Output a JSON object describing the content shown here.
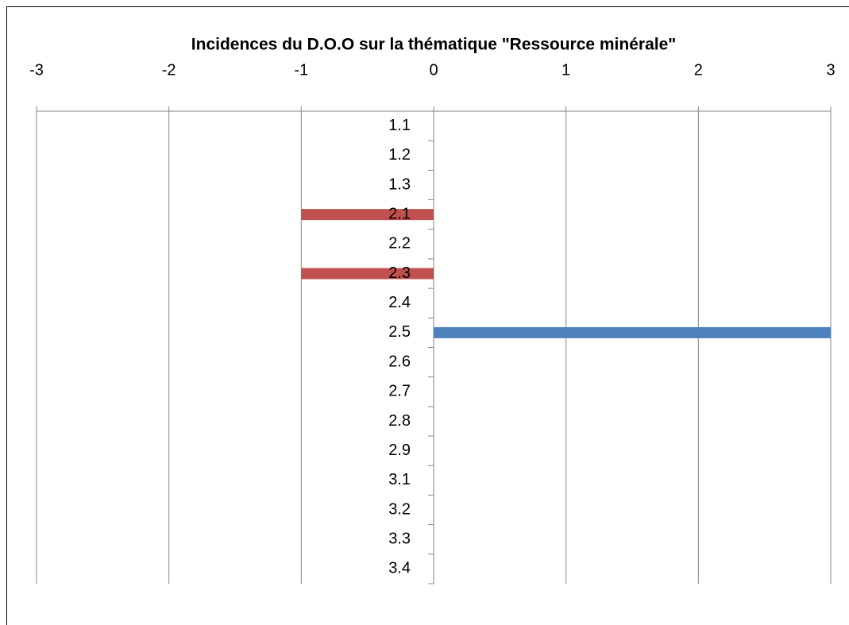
{
  "chart_data": {
    "type": "hbar",
    "title": "Incidences du D.O.O sur la thématique \"Ressource minérale\"",
    "categories": [
      "1.1",
      "1.2",
      "1.3",
      "2.1",
      "2.2",
      "2.3",
      "2.4",
      "2.5",
      "2.6",
      "2.7",
      "2.8",
      "2.9",
      "3.1",
      "3.2",
      "3.3",
      "3.4"
    ],
    "values": [
      0,
      0,
      0,
      -1,
      0,
      -1,
      0,
      3,
      0,
      0,
      0,
      0,
      0,
      0,
      0,
      0
    ],
    "colors": [
      "#4f81bd",
      "#4f81bd",
      "#4f81bd",
      "#c0504d",
      "#4f81bd",
      "#c0504d",
      "#4f81bd",
      "#4f81bd",
      "#4f81bd",
      "#4f81bd",
      "#4f81bd",
      "#4f81bd",
      "#4f81bd",
      "#4f81bd",
      "#4f81bd",
      "#4f81bd"
    ],
    "xlim": [
      -3,
      3
    ],
    "xticks": [
      -3,
      -2,
      -1,
      0,
      1,
      2,
      3
    ],
    "grid": true
  }
}
